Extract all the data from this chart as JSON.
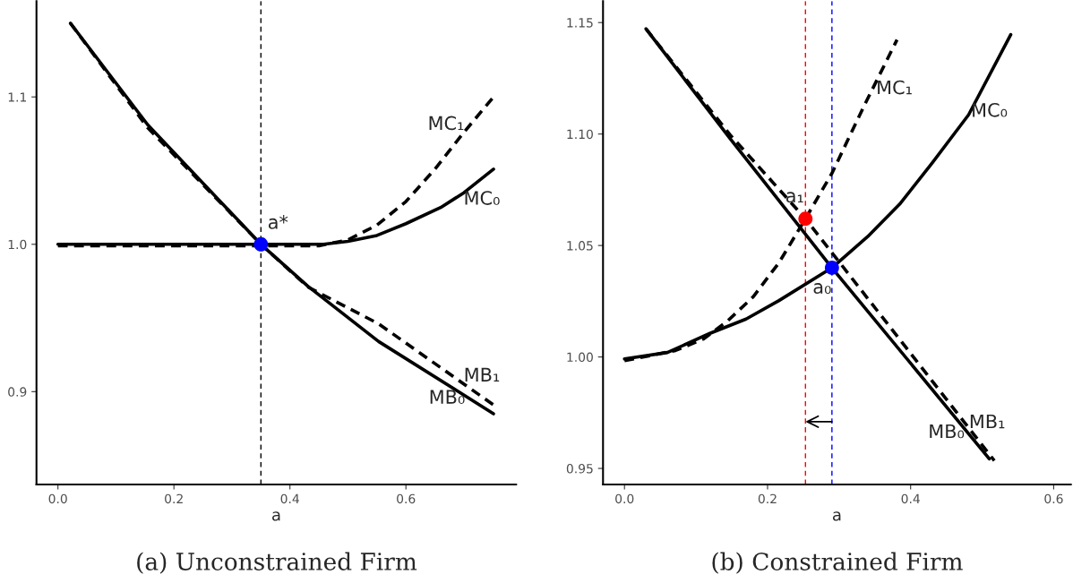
{
  "chart_data": [
    {
      "type": "line",
      "title": "(a) Unconstrained Firm",
      "xlabel": "a",
      "xlim": [
        -0.037,
        0.79
      ],
      "ylim": [
        0.837,
        1.165
      ],
      "xticks": [
        {
          "value": 0,
          "label": "0.0"
        },
        0.2,
        0.4,
        0.6
      ],
      "yticks": [
        {
          "value": 0.9,
          "label": "0.9"
        },
        {
          "value": 1.0,
          "label": "1.0"
        },
        {
          "value": 1.1,
          "label": "1.1"
        }
      ],
      "grid": false,
      "legend": false,
      "series": [
        {
          "name": "MB₀",
          "color": "#000000",
          "line_style": "solid",
          "x": [
            0.0216,
            0.155,
            0.35,
            0.431,
            0.553,
            0.751
          ],
          "values": [
            1.15,
            1.081,
            1.0,
            0.9715,
            0.934,
            0.885
          ]
        },
        {
          "name": "MB₁",
          "color": "#000000",
          "line_style": "dashed",
          "x": [
            0.0216,
            0.155,
            0.35,
            0.431,
            0.553,
            0.751
          ],
          "values": [
            1.15,
            1.079,
            1.0,
            0.971,
            0.946,
            0.891
          ]
        },
        {
          "name": "MC₀",
          "color": "#000000",
          "line_style": "solid",
          "x": [
            0.0,
            0.458,
            0.5,
            0.55,
            0.6,
            0.66,
            0.7,
            0.751
          ],
          "values": [
            1.0,
            1.0,
            1.002,
            1.006,
            1.014,
            1.025,
            1.035,
            1.051
          ]
        },
        {
          "name": "MC₁",
          "color": "#000000",
          "line_style": "dashed",
          "x": [
            0.0,
            0.45,
            0.5,
            0.55,
            0.6,
            0.65,
            0.7,
            0.751
          ],
          "values": [
            0.999,
            0.999,
            1.003,
            1.013,
            1.029,
            1.051,
            1.076,
            1.1
          ]
        },
        {
          "name": "a*",
          "type": "scatter",
          "marker": "circle",
          "color": "#0000ff",
          "x": [
            0.35
          ],
          "values": [
            1.0
          ]
        }
      ],
      "ref_lines": [
        {
          "axis": "x",
          "value": 0.35,
          "color": "#000000",
          "line_style": "dashed"
        }
      ]
    },
    {
      "type": "line",
      "title": "(b) Constrained Firm",
      "xlabel": "a",
      "xlim": [
        -0.03,
        0.624
      ],
      "ylim": [
        0.9428,
        1.1596
      ],
      "xticks": [
        {
          "value": 0,
          "label": "0.0"
        },
        0.2,
        0.4,
        0.6
      ],
      "yticks": [
        {
          "value": 0.95,
          "label": "0.95"
        },
        {
          "value": 1.0,
          "label": "1.00"
        },
        {
          "value": 1.05,
          "label": "1.05"
        },
        {
          "value": 1.1,
          "label": "1.10"
        },
        {
          "value": 1.15,
          "label": "1.15"
        }
      ],
      "grid": false,
      "legend": false,
      "series": [
        {
          "name": "MB₀",
          "color": "#000000",
          "line_style": "solid",
          "x": [
            0.03,
            0.148,
            0.29,
            0.51
          ],
          "values": [
            1.1472,
            1.0978,
            1.04,
            0.9543
          ]
        },
        {
          "name": "MB₁",
          "color": "#000000",
          "line_style": "dashed",
          "x": [
            0.03,
            0.148,
            0.253,
            0.517
          ],
          "values": [
            1.1472,
            1.0995,
            1.062,
            0.9535
          ]
        },
        {
          "name": "MC₀",
          "color": "#000000",
          "line_style": "solid",
          "x": [
            0.0,
            0.06,
            0.1195,
            0.17,
            0.216,
            0.29,
            0.34,
            0.3846,
            0.43,
            0.481,
            0.54
          ],
          "values": [
            0.9991,
            1.002,
            1.0106,
            1.017,
            1.0253,
            1.04,
            1.054,
            1.0685,
            1.087,
            1.1086,
            1.1446
          ]
        },
        {
          "name": "MC₁",
          "color": "#000000",
          "line_style": "dashed",
          "x": [
            0.0,
            0.0713,
            0.11,
            0.1436,
            0.18,
            0.216,
            0.253,
            0.29,
            0.336,
            0.381
          ],
          "values": [
            0.9983,
            1.0029,
            1.008,
            1.016,
            1.027,
            1.0423,
            1.062,
            1.0824,
            1.1133,
            1.1423
          ]
        },
        {
          "name": "a₁",
          "type": "scatter",
          "marker": "circle",
          "color": "#ff0000",
          "x": [
            0.253
          ],
          "values": [
            1.062
          ]
        },
        {
          "name": "a₀",
          "type": "scatter",
          "marker": "circle",
          "color": "#0000ff",
          "x": [
            0.29
          ],
          "values": [
            1.04
          ]
        }
      ],
      "ref_lines": [
        {
          "axis": "x",
          "value": 0.253,
          "color": "#ff0000",
          "line_style": "dashed"
        },
        {
          "axis": "x",
          "value": 0.29,
          "color": "#0000ff",
          "line_style": "dashed"
        }
      ]
    }
  ]
}
